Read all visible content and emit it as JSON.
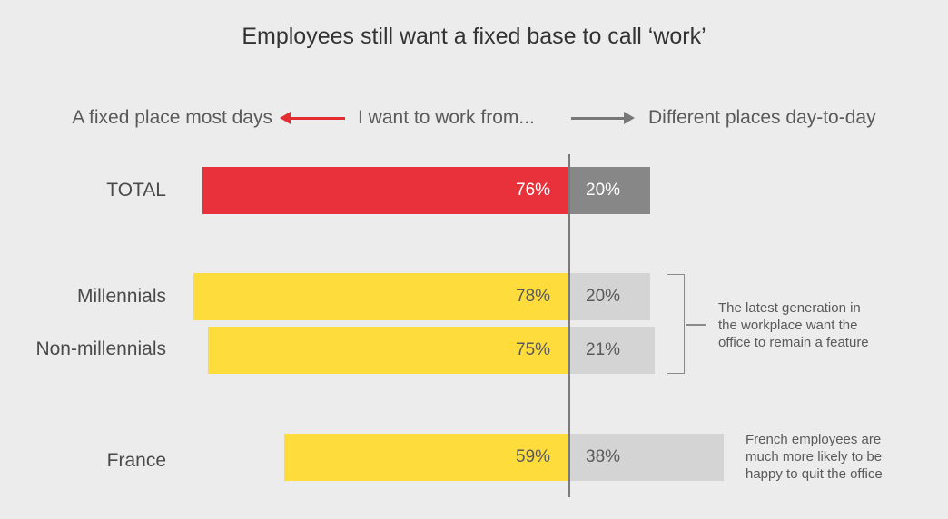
{
  "title": "Employees still want a fixed base to call ‘work’",
  "header": {
    "left_label": "A fixed place most days",
    "middle_label": "I want to work from...",
    "right_label": "Different places day-to-day"
  },
  "colors": {
    "total_left": "#e8313a",
    "total_right": "#878787",
    "group_left": "#fddc3c",
    "group_right": "#d4d4d4",
    "arrow_left": "#e32d33",
    "arrow_right": "#777777"
  },
  "annotations": {
    "millennials_note": "The latest generation in\nthe workplace want the\noffice to remain a feature",
    "france_note": "French employees are\nmuch more likely to be\nhappy to quit the office"
  },
  "chart_data": {
    "type": "bar",
    "orientation": "horizontal-diverging",
    "categories": [
      "TOTAL",
      "Millennials",
      "Non-millennials",
      "France"
    ],
    "series": [
      {
        "name": "A fixed place most days",
        "values": [
          76,
          78,
          75,
          59
        ]
      },
      {
        "name": "Different places day-to-day",
        "values": [
          20,
          20,
          21,
          38
        ]
      }
    ],
    "value_labels": {
      "left": [
        "76%",
        "78%",
        "75%",
        "59%"
      ],
      "right": [
        "20%",
        "20%",
        "21%",
        "38%"
      ]
    },
    "title": "Employees still want a fixed base to call ‘work’",
    "unit": "%",
    "grid": false,
    "legend": "none"
  }
}
